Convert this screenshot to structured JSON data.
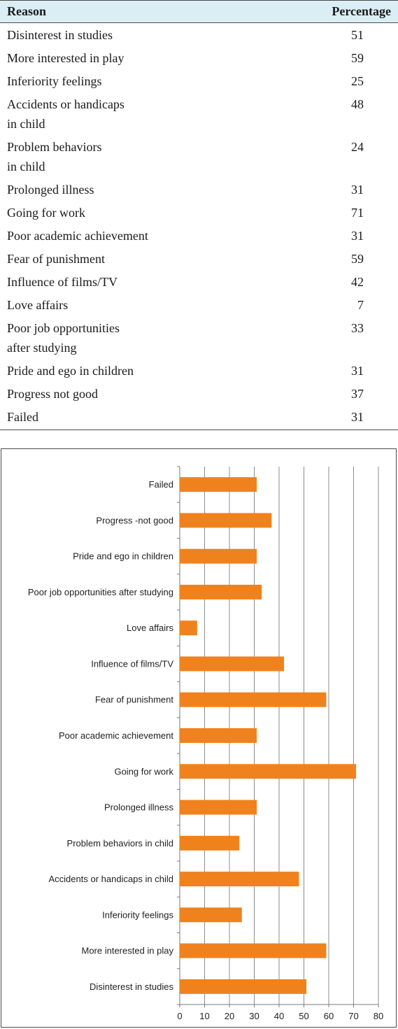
{
  "table": {
    "headers": {
      "reason": "Reason",
      "percentage": "Percentage"
    },
    "rows": [
      {
        "reason": [
          "Disinterest in studies"
        ],
        "percentage": "51"
      },
      {
        "reason": [
          "More interested in play"
        ],
        "percentage": "59"
      },
      {
        "reason": [
          "Inferiority feelings"
        ],
        "percentage": "25"
      },
      {
        "reason": [
          "Accidents or handicaps",
          "in child"
        ],
        "percentage": "48"
      },
      {
        "reason": [
          "Problem behaviors",
          "in child"
        ],
        "percentage": "24"
      },
      {
        "reason": [
          "Prolonged illness"
        ],
        "percentage": "31"
      },
      {
        "reason": [
          "Going for work"
        ],
        "percentage": "71"
      },
      {
        "reason": [
          "Poor academic achievement"
        ],
        "percentage": "31"
      },
      {
        "reason": [
          "Fear of punishment"
        ],
        "percentage": "59"
      },
      {
        "reason": [
          "Influence of films/TV"
        ],
        "percentage": "42"
      },
      {
        "reason": [
          "Love affairs"
        ],
        "percentage": "7"
      },
      {
        "reason": [
          "Poor job opportunities",
          "after studying"
        ],
        "percentage": "33"
      },
      {
        "reason": [
          "Pride and ego in children"
        ],
        "percentage": "31"
      },
      {
        "reason": [
          "Progress not good"
        ],
        "percentage": "37"
      },
      {
        "reason": [
          "Failed"
        ],
        "percentage": "31"
      }
    ]
  },
  "chart_data": {
    "type": "bar",
    "orientation": "horizontal",
    "categories": [
      "Failed",
      "Progress -not good",
      "Pride and ego in children",
      "Poor job opportunities after studying",
      "Love affairs",
      "Influence of films/TV",
      "Fear of punishment",
      "Poor academic achievement",
      "Going for work",
      "Prolonged illness",
      "Problem behaviors in child",
      "Accidents or handicaps in child",
      "Inferiority feelings",
      "More interested in play",
      "Disinterest in studies"
    ],
    "values": [
      31,
      37,
      31,
      33,
      7,
      42,
      59,
      31,
      71,
      31,
      24,
      48,
      25,
      59,
      51
    ],
    "xlim": [
      0,
      80
    ],
    "xticks": [
      "0",
      "10",
      "20",
      "30",
      "40",
      "50",
      "60",
      "70",
      "80"
    ],
    "grid": "vertical",
    "title": "",
    "xlabel": "",
    "ylabel": "",
    "bar_color": "#f0821e",
    "grid_color": "#8c8c8c"
  }
}
